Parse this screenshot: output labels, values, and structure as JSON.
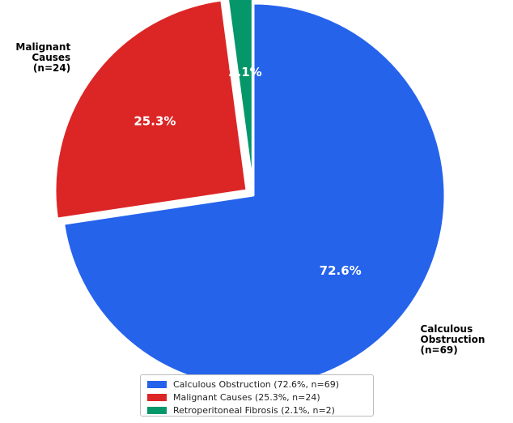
{
  "chart_data": {
    "type": "pie",
    "title": "",
    "slices": [
      {
        "key": "calculous",
        "label_lines": [
          "Calculous",
          "Obstruction",
          "(n=69)"
        ],
        "percent_label": "72.6%",
        "value": 69,
        "percent": 72.6,
        "color": "#2563eb",
        "exploded": false,
        "legend_label": "Calculous Obstruction (72.6%, n=69)"
      },
      {
        "key": "malignant",
        "label_lines": [
          "Malignant",
          "Causes",
          "(n=24)"
        ],
        "percent_label": "25.3%",
        "value": 24,
        "percent": 25.3,
        "color": "#dc2626",
        "exploded": true,
        "legend_label": "Malignant Causes (25.3%, n=24)"
      },
      {
        "key": "retroperitoneal",
        "label_lines": [
          "Retroperitoneal",
          "Fibrosis",
          "(n=2)"
        ],
        "percent_label": "2.1%",
        "value": 2,
        "percent": 2.1,
        "color": "#059669",
        "exploded": true,
        "legend_label": "Retroperitoneal Fibrosis (2.1%, n=2)"
      }
    ],
    "start_angle": "top",
    "direction": "clockwise",
    "legend_position": "bottom-center"
  }
}
